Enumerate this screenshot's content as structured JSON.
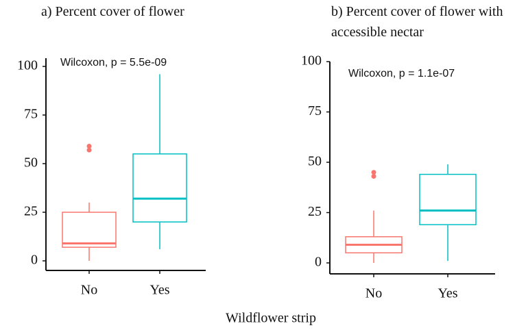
{
  "xlabel": "Wildflower strip",
  "chart_data": [
    {
      "type": "box",
      "title": "a) Percent cover of flower",
      "annotation": "Wilcoxon, p = 5.5e-09",
      "categories": [
        "No",
        "Yes"
      ],
      "colors": [
        "#f8766d",
        "#00bfc4"
      ],
      "boxes": [
        {
          "min": 0,
          "q1": 7,
          "median": 9,
          "q3": 25,
          "max": 30,
          "outliers": [
            59,
            57
          ]
        },
        {
          "min": 6,
          "q1": 20,
          "median": 32,
          "q3": 55,
          "max": 96,
          "outliers": []
        }
      ],
      "ylim": [
        0,
        100
      ],
      "yticks": [
        0,
        25,
        50,
        75,
        100
      ]
    },
    {
      "type": "box",
      "title": "b) Percent cover of flower with accessible nectar",
      "annotation": "Wilcoxon, p = 1.1e-07",
      "categories": [
        "No",
        "Yes"
      ],
      "colors": [
        "#f8766d",
        "#00bfc4"
      ],
      "boxes": [
        {
          "min": 0,
          "q1": 5,
          "median": 9,
          "q3": 13,
          "max": 26,
          "outliers": [
            45,
            43
          ]
        },
        {
          "min": 1,
          "q1": 19,
          "median": 26,
          "q3": 44,
          "max": 49,
          "outliers": []
        }
      ],
      "ylim": [
        0,
        100
      ],
      "yticks": [
        0,
        25,
        50,
        75,
        100
      ]
    }
  ]
}
